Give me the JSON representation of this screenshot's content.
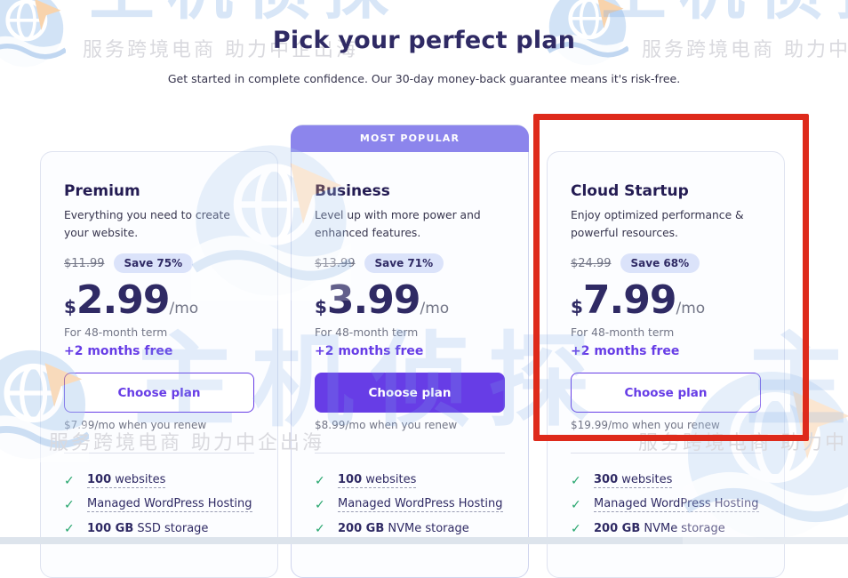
{
  "page": {
    "title": "Pick your perfect plan",
    "subtitle": "Get started in complete confidence. Our 30-day money-back guarantee means it's risk-free."
  },
  "watermark": {
    "brand_text": "主机侦探",
    "tagline": "服务跨境电商 助力中企出海",
    "tagline_cut": "服务跨境电商 助力中"
  },
  "colors": {
    "accent_purple": "#673de6",
    "banner_purple": "#8c85ec",
    "badge_bg": "#dbe3fa",
    "heading_navy": "#2f2a64",
    "check_green": "#24a56c",
    "annotation_red": "#de2a1b"
  },
  "plans": [
    {
      "name": "Premium",
      "description": "Everything you need to create your website.",
      "old_price": "$11.99",
      "save_badge": "Save 75%",
      "currency": "$",
      "price": "2.99",
      "per": "/mo",
      "term": "For 48-month term",
      "bonus": "+2 months free",
      "cta": "Choose plan",
      "renewal": "$7.99/mo when you renew",
      "popular_badge": "",
      "features": [
        {
          "bold": "100",
          "text": " websites",
          "underlined": true
        },
        {
          "bold": "",
          "text": "Managed WordPress Hosting",
          "underlined": true
        },
        {
          "bold": "100 GB",
          "text": " SSD storage",
          "underlined": false
        }
      ]
    },
    {
      "name": "Business",
      "description": "Level up with more power and enhanced features.",
      "old_price": "$13.99",
      "save_badge": "Save 71%",
      "currency": "$",
      "price": "3.99",
      "per": "/mo",
      "term": "For 48-month term",
      "bonus": "+2 months free",
      "cta": "Choose plan",
      "renewal": "$8.99/mo when you renew",
      "popular_badge": "MOST POPULAR",
      "features": [
        {
          "bold": "100",
          "text": " websites",
          "underlined": true
        },
        {
          "bold": "",
          "text": "Managed WordPress Hosting",
          "underlined": true
        },
        {
          "bold": "200 GB",
          "text": " NVMe storage",
          "underlined": false
        }
      ]
    },
    {
      "name": "Cloud Startup",
      "description": "Enjoy optimized performance & powerful resources.",
      "old_price": "$24.99",
      "save_badge": "Save 68%",
      "currency": "$",
      "price": "7.99",
      "per": "/mo",
      "term": "For 48-month term",
      "bonus": "+2 months free",
      "cta": "Choose plan",
      "renewal": "$19.99/mo when you renew",
      "popular_badge": "",
      "features": [
        {
          "bold": "300",
          "text": " websites",
          "underlined": true
        },
        {
          "bold": "",
          "text": "Managed WordPress Hosting",
          "underlined": true
        },
        {
          "bold": "200 GB",
          "text": " NVMe storage",
          "underlined": false
        }
      ]
    }
  ]
}
